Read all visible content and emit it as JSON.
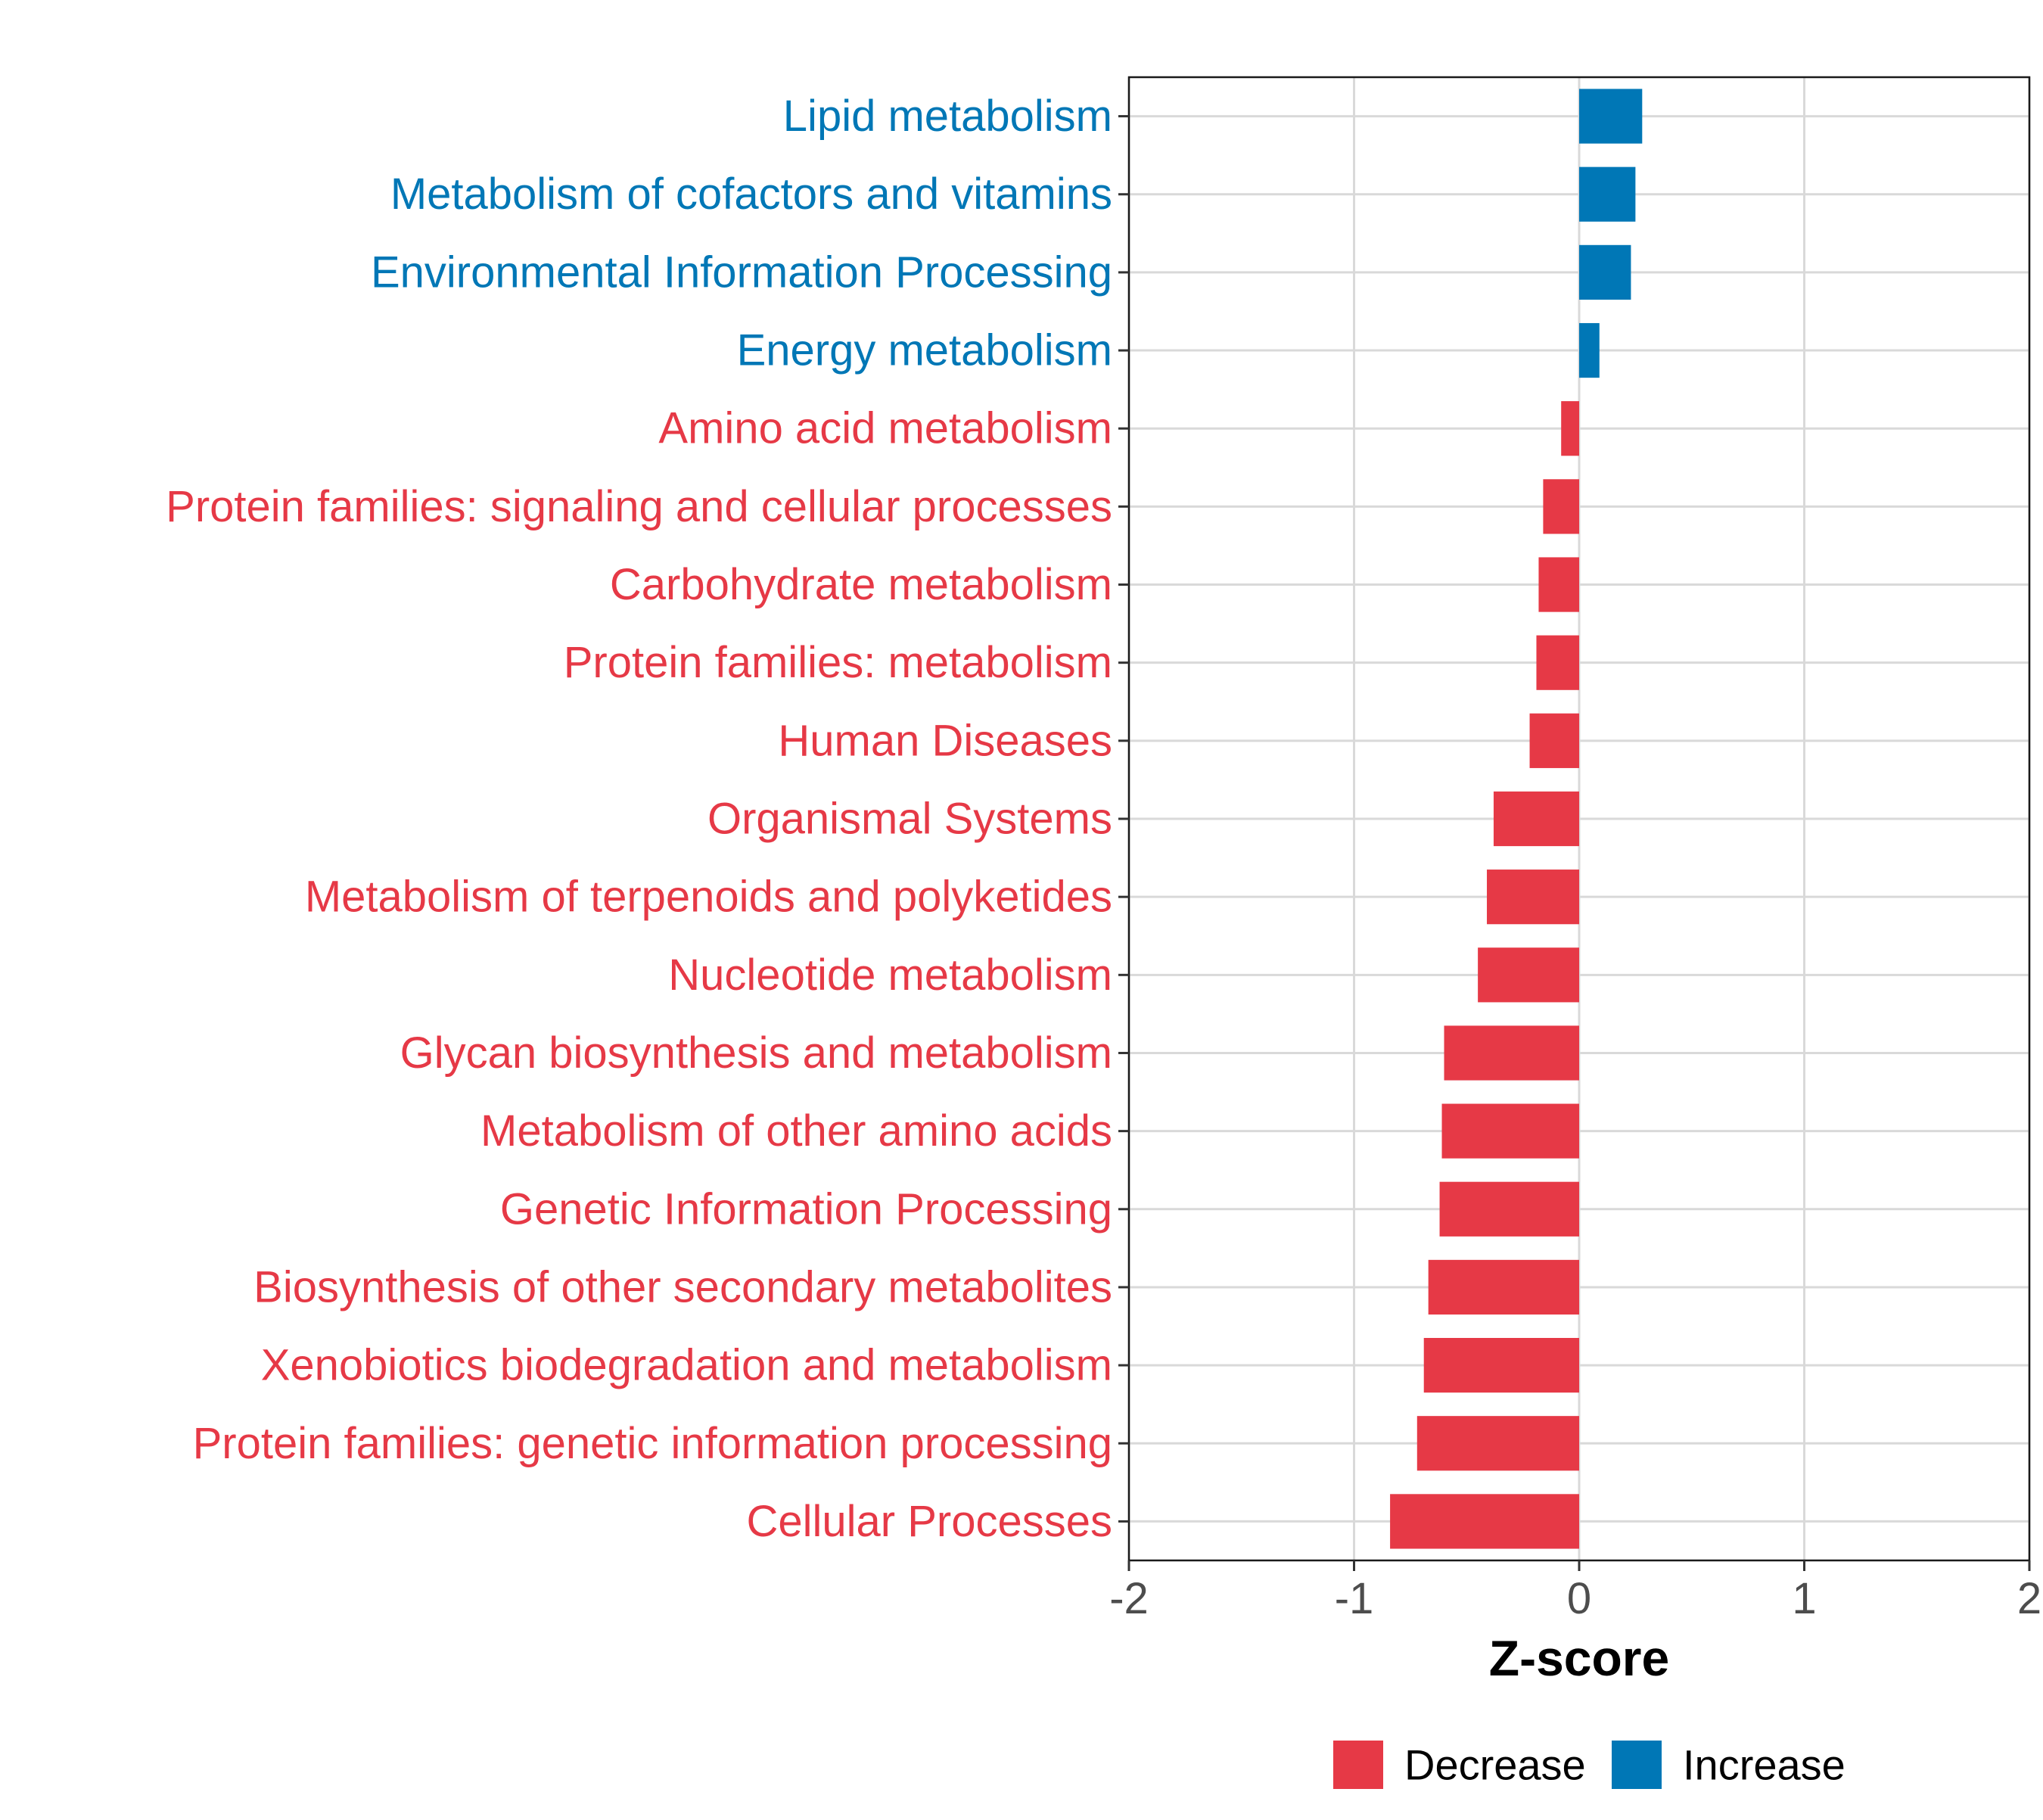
{
  "chart_data": {
    "type": "bar",
    "orientation": "horizontal",
    "title": "",
    "xlabel": "Z-score",
    "ylabel": "",
    "xlim": [
      -2,
      2
    ],
    "xticks": [
      -2,
      -1,
      0,
      1,
      2
    ],
    "xtick_labels": [
      "-2",
      "-1",
      "0",
      "1",
      "2"
    ],
    "grid": true,
    "legend_position": "bottom",
    "colors": {
      "Decrease": "#E63946",
      "Increase": "#0077B6"
    },
    "legend": [
      {
        "label": "Decrease",
        "color": "#E63946"
      },
      {
        "label": "Increase",
        "color": "#0077B6"
      }
    ],
    "categories": [
      "Lipid metabolism",
      "Metabolism of cofactors and vitamins",
      "Environmental Information Processing",
      "Energy metabolism",
      "Amino acid metabolism",
      "Protein families: signaling and cellular processes",
      "Carbohydrate metabolism",
      "Protein families: metabolism",
      "Human Diseases",
      "Organismal Systems",
      "Metabolism of terpenoids and polyketides",
      "Nucleotide metabolism",
      "Glycan biosynthesis and metabolism",
      "Metabolism of other amino acids",
      "Genetic Information Processing",
      "Biosynthesis of other secondary metabolites",
      "Xenobiotics biodegradation and metabolism",
      "Protein families: genetic information processing",
      "Cellular Processes"
    ],
    "values": [
      0.28,
      0.25,
      0.23,
      0.09,
      -0.08,
      -0.16,
      -0.18,
      -0.19,
      -0.22,
      -0.38,
      -0.41,
      -0.45,
      -0.6,
      -0.61,
      -0.62,
      -0.67,
      -0.69,
      -0.72,
      -0.84
    ],
    "groups": [
      "Increase",
      "Increase",
      "Increase",
      "Increase",
      "Decrease",
      "Decrease",
      "Decrease",
      "Decrease",
      "Decrease",
      "Decrease",
      "Decrease",
      "Decrease",
      "Decrease",
      "Decrease",
      "Decrease",
      "Decrease",
      "Decrease",
      "Decrease",
      "Decrease"
    ]
  }
}
